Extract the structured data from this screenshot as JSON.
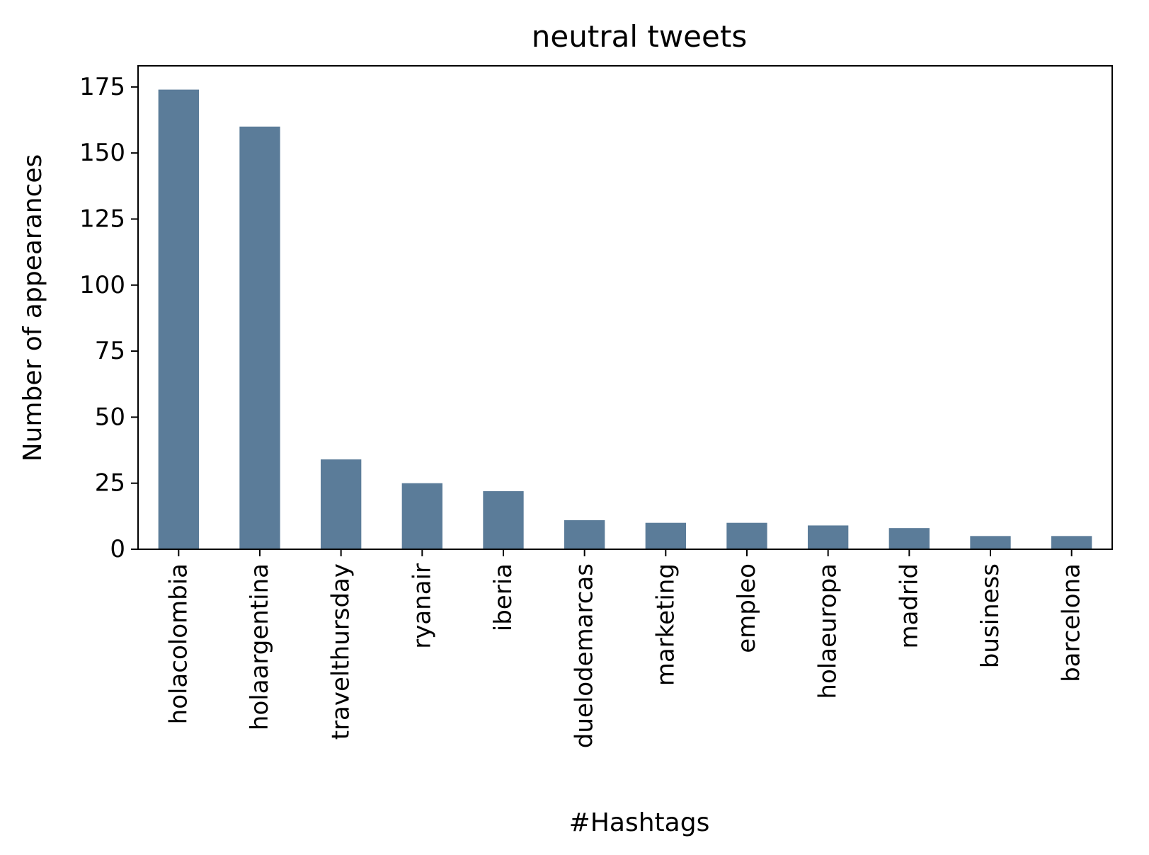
{
  "chart_data": {
    "type": "bar",
    "title": "neutral tweets",
    "xlabel": "#Hashtags",
    "ylabel": "Number of appearances",
    "categories": [
      "holacolombia",
      "holaargentina",
      "travelthursday",
      "ryanair",
      "iberia",
      "duelodemarcas",
      "marketing",
      "empleo",
      "holaeuropa",
      "madrid",
      "business",
      "barcelona"
    ],
    "values": [
      174,
      160,
      34,
      25,
      22,
      11,
      10,
      10,
      9,
      8,
      5,
      5
    ],
    "ylim": [
      0,
      183
    ],
    "yticks": [
      0,
      25,
      50,
      75,
      100,
      125,
      150,
      175
    ],
    "grid": false,
    "legend": "none",
    "bar_color": "#5b7c99"
  }
}
